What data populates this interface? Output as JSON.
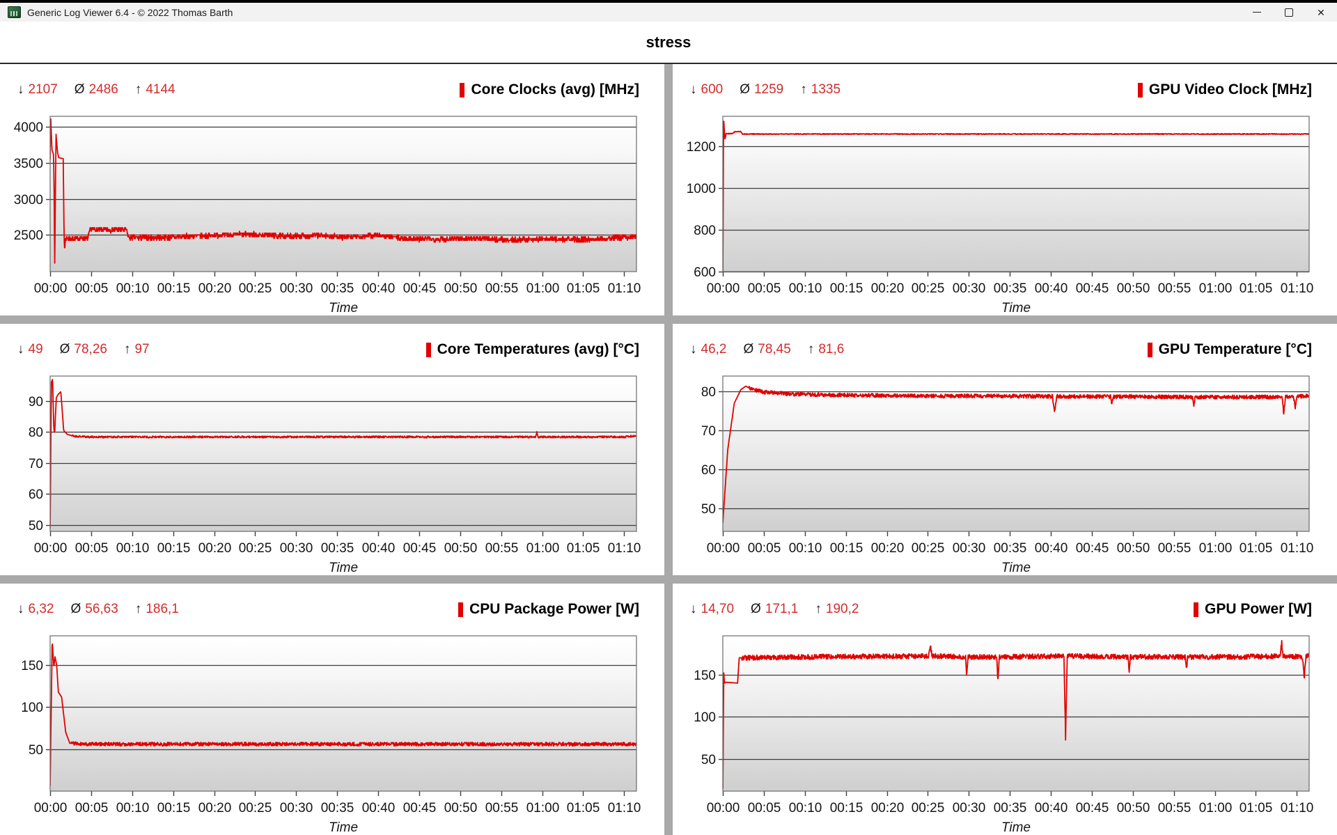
{
  "window": {
    "title": "Generic Log Viewer 6.4 - © 2022 Thomas Barth"
  },
  "header": {
    "title": "stress"
  },
  "stats_symbols": {
    "min": "↓",
    "avg": "Ø",
    "max": "↑"
  },
  "icons": {
    "app": "app-logo-icon",
    "minimize": "minimize-icon",
    "maximize": "maximize-icon",
    "close": "close-icon"
  },
  "colors": {
    "series": "#e10000",
    "accent_red": "#d22c2c",
    "grid": "#3d3d3d",
    "plot_border": "#6a6a6a",
    "plot_bg_top": "#ffffff",
    "plot_bg_bottom": "#cfcfcf",
    "divider": "#a9a9a9",
    "titlebar_bg": "#f2f2f2"
  },
  "axis": {
    "x_ticks": [
      "00:00",
      "00:05",
      "00:10",
      "00:15",
      "00:20",
      "00:25",
      "00:30",
      "00:35",
      "00:40",
      "00:45",
      "00:50",
      "00:55",
      "01:00",
      "01:05",
      "01:10"
    ],
    "x_tick_step_minutes": 5,
    "x_domain_minutes": [
      0,
      71.5
    ],
    "x_label": "Time"
  },
  "chart_data": [
    {
      "type": "line",
      "title": "Core Clocks (avg) [MHz]",
      "stats": {
        "min": "2107",
        "avg": "2486",
        "max": "4144"
      },
      "y_ticks": [
        2500,
        3000,
        3500,
        4000
      ],
      "ylim": [
        1990,
        4150
      ],
      "noise": 35,
      "noise_from": 1.9,
      "quantize": 25,
      "seed": 7,
      "keypoints": [
        [
          0,
          3550
        ],
        [
          0.07,
          4144
        ],
        [
          0.22,
          3680
        ],
        [
          0.42,
          3620
        ],
        [
          0.5,
          2960
        ],
        [
          0.56,
          2107
        ],
        [
          0.63,
          2960
        ],
        [
          0.72,
          3900
        ],
        [
          0.9,
          3650
        ],
        [
          1.05,
          3575
        ],
        [
          1.6,
          3560
        ],
        [
          1.7,
          2450
        ],
        [
          1.78,
          2280
        ],
        [
          1.86,
          2450
        ],
        [
          4.6,
          2455
        ],
        [
          4.9,
          2575
        ],
        [
          9.3,
          2570
        ],
        [
          9.6,
          2460
        ],
        [
          14,
          2465
        ],
        [
          19,
          2490
        ],
        [
          24,
          2510
        ],
        [
          29,
          2480
        ],
        [
          33,
          2495
        ],
        [
          36,
          2465
        ],
        [
          40,
          2495
        ],
        [
          43,
          2450
        ],
        [
          47,
          2440
        ],
        [
          52,
          2455
        ],
        [
          56,
          2430
        ],
        [
          60,
          2445
        ],
        [
          64,
          2435
        ],
        [
          67,
          2450
        ],
        [
          71.5,
          2475
        ]
      ]
    },
    {
      "type": "line",
      "title": "GPU Video Clock [MHz]",
      "stats": {
        "min": "600",
        "avg": "1259",
        "max": "1335"
      },
      "y_ticks": [
        600,
        800,
        1000,
        1200
      ],
      "ylim": [
        600,
        1345
      ],
      "noise": 2,
      "noise_from": 0.6,
      "seed": 12,
      "keypoints": [
        [
          0,
          600
        ],
        [
          0.1,
          1335
        ],
        [
          0.25,
          1232
        ],
        [
          0.4,
          1262
        ],
        [
          1.2,
          1262
        ],
        [
          1.5,
          1272
        ],
        [
          2.2,
          1272
        ],
        [
          2.4,
          1260
        ],
        [
          71.5,
          1260
        ]
      ]
    },
    {
      "type": "line",
      "title": "Core Temperatures (avg) [°C]",
      "stats": {
        "min": "49",
        "avg": "78,26",
        "max": "97"
      },
      "y_ticks": [
        50,
        60,
        70,
        80,
        90
      ],
      "ylim": [
        48,
        98
      ],
      "noise": 0.3,
      "noise_from": 2.5,
      "seed": 21,
      "keypoints": [
        [
          0,
          49
        ],
        [
          0.15,
          96
        ],
        [
          0.3,
          97
        ],
        [
          0.45,
          81
        ],
        [
          0.55,
          79.5
        ],
        [
          0.75,
          91
        ],
        [
          0.95,
          92
        ],
        [
          1.3,
          93
        ],
        [
          1.5,
          86
        ],
        [
          1.65,
          80.5
        ],
        [
          2.1,
          79.2
        ],
        [
          3,
          78.6
        ],
        [
          5,
          78.4
        ],
        [
          59.2,
          78.4
        ],
        [
          59.35,
          80
        ],
        [
          59.5,
          78.4
        ],
        [
          70,
          78.4
        ],
        [
          71.5,
          78.8
        ]
      ]
    },
    {
      "type": "line",
      "title": "GPU Temperature [°C]",
      "stats": {
        "min": "46,2",
        "avg": "78,45",
        "max": "81,6"
      },
      "y_ticks": [
        50,
        60,
        70,
        80
      ],
      "ylim": [
        44,
        84
      ],
      "noise": 0.5,
      "noise_from": 3.2,
      "seed": 30,
      "keypoints": [
        [
          0,
          46.2
        ],
        [
          0.6,
          65
        ],
        [
          1.4,
          77
        ],
        [
          2.2,
          80.5
        ],
        [
          2.8,
          81.4
        ],
        [
          3.5,
          80.6
        ],
        [
          5,
          79.9
        ],
        [
          8,
          79.4
        ],
        [
          14,
          79.1
        ],
        [
          25,
          78.9
        ],
        [
          40.2,
          78.8
        ],
        [
          40.45,
          74.5
        ],
        [
          40.7,
          78.8
        ],
        [
          47.3,
          78.7
        ],
        [
          47.45,
          76.5
        ],
        [
          47.6,
          78.7
        ],
        [
          57.3,
          78.6
        ],
        [
          57.45,
          76.3
        ],
        [
          57.6,
          78.6
        ],
        [
          60,
          78.6
        ],
        [
          68.2,
          78.6
        ],
        [
          68.4,
          74.3
        ],
        [
          68.6,
          78.6
        ],
        [
          69.6,
          78.7
        ],
        [
          69.8,
          75.8
        ],
        [
          70,
          78.7
        ],
        [
          71.5,
          78.9
        ]
      ]
    },
    {
      "type": "line",
      "title": "CPU Package Power [W]",
      "stats": {
        "min": "6,32",
        "avg": "56,63",
        "max": "186,1"
      },
      "y_ticks": [
        50,
        100,
        150
      ],
      "ylim": [
        0,
        185
      ],
      "noise": 2.2,
      "noise_from": 2.6,
      "seed": 41,
      "keypoints": [
        [
          0,
          6.5
        ],
        [
          0.25,
          180
        ],
        [
          0.45,
          148
        ],
        [
          0.6,
          160
        ],
        [
          0.8,
          150
        ],
        [
          1.0,
          118
        ],
        [
          1.4,
          112
        ],
        [
          1.9,
          70
        ],
        [
          2.4,
          57
        ],
        [
          5,
          56
        ],
        [
          71.5,
          56
        ]
      ]
    },
    {
      "type": "line",
      "title": "GPU Power [W]",
      "stats": {
        "min": "14,70",
        "avg": "171,1",
        "max": "190,2"
      },
      "y_ticks": [
        50,
        100,
        150
      ],
      "ylim": [
        12,
        196
      ],
      "noise": 3,
      "noise_from": 2.3,
      "seed": 52,
      "keypoints": [
        [
          0,
          15
        ],
        [
          0.12,
          152
        ],
        [
          0.2,
          140
        ],
        [
          0.35,
          141
        ],
        [
          1.8,
          140
        ],
        [
          2.0,
          170
        ],
        [
          10,
          171
        ],
        [
          25.1,
          172
        ],
        [
          25.3,
          186
        ],
        [
          25.5,
          172
        ],
        [
          29.6,
          171
        ],
        [
          29.75,
          148
        ],
        [
          29.9,
          171
        ],
        [
          33.4,
          171
        ],
        [
          33.55,
          144
        ],
        [
          33.7,
          171
        ],
        [
          41.6,
          172
        ],
        [
          41.8,
          75
        ],
        [
          42.0,
          172
        ],
        [
          49.4,
          171
        ],
        [
          49.55,
          152
        ],
        [
          49.7,
          171
        ],
        [
          56.4,
          171
        ],
        [
          56.55,
          158
        ],
        [
          56.7,
          171
        ],
        [
          63,
          171
        ],
        [
          68.0,
          172
        ],
        [
          68.15,
          190
        ],
        [
          68.3,
          172
        ],
        [
          70.7,
          171
        ],
        [
          70.9,
          146
        ],
        [
          71.1,
          171
        ],
        [
          71.5,
          173
        ]
      ]
    }
  ]
}
